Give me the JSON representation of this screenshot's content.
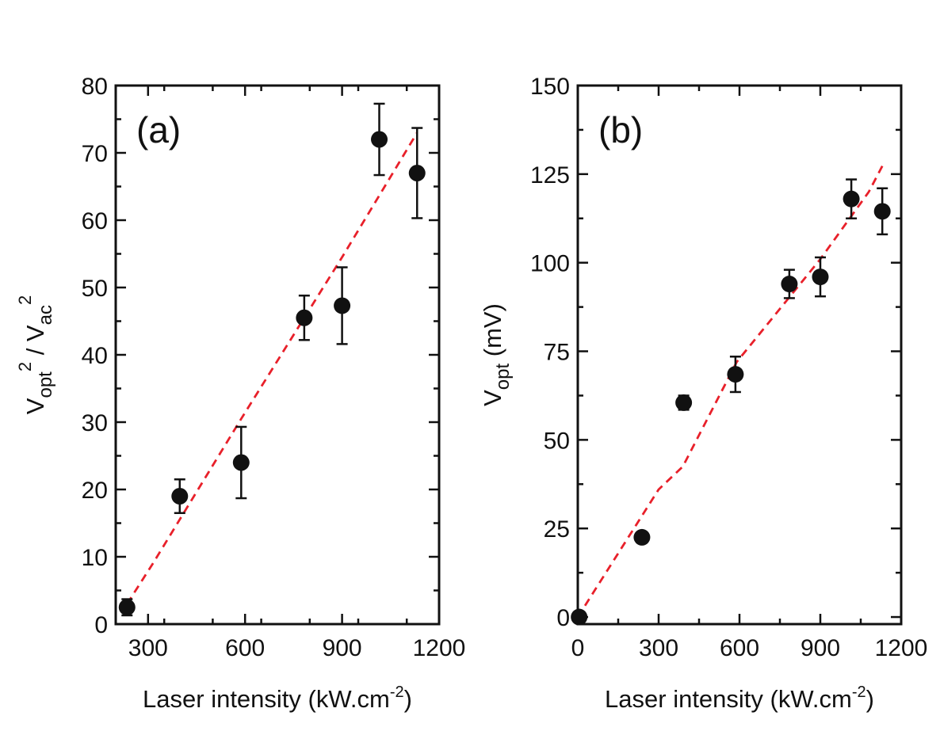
{
  "chart_data": [
    {
      "type": "scatter",
      "panel_label": "(a)",
      "xlabel": "Laser intensity (kW.cm",
      "xlabel_sup": "-2",
      "xlabel_close": ")",
      "ylabel": {
        "v1": "V",
        "sub1": "opt",
        "sup1": "2",
        "slash": " / V",
        "sub2": "ac",
        "sup2": "2"
      },
      "xlim": [
        200,
        1200
      ],
      "ylim": [
        0,
        80
      ],
      "xticks": [
        300,
        600,
        900,
        1200
      ],
      "yticks": [
        0,
        10,
        20,
        30,
        40,
        50,
        60,
        70,
        80
      ],
      "xtick_labels": [
        "300",
        "600",
        "900",
        "1200"
      ],
      "ytick_labels": [
        "0",
        "10",
        "20",
        "30",
        "40",
        "50",
        "60",
        "70",
        "80"
      ],
      "series": [
        {
          "name": "data",
          "points": [
            {
              "x": 235,
              "y": 2.5,
              "err": 1.2
            },
            {
              "x": 398,
              "y": 19.0,
              "err": 2.5
            },
            {
              "x": 588,
              "y": 24.0,
              "err": 5.3
            },
            {
              "x": 783,
              "y": 45.5,
              "err": 3.3
            },
            {
              "x": 900,
              "y": 47.3,
              "err": 5.7
            },
            {
              "x": 1015,
              "y": 72.0,
              "err": 5.3
            },
            {
              "x": 1132,
              "y": 67.0,
              "err": 6.7
            }
          ]
        },
        {
          "name": "linear fit",
          "line": "dashed",
          "color": "#e8202a",
          "points": [
            [
              235,
              3.0
            ],
            [
              315,
              9.0
            ],
            [
              588,
              30.5
            ],
            [
              900,
              54.5
            ],
            [
              1132,
              73.0
            ]
          ]
        }
      ]
    },
    {
      "type": "scatter",
      "panel_label": "(b)",
      "xlabel": "Laser intensity (kW.cm",
      "xlabel_sup": "-2",
      "xlabel_close": ")",
      "ylabel": {
        "v1": "V",
        "sub1": "opt",
        "rest": " (mV)"
      },
      "xlim": [
        0,
        1200
      ],
      "ylim": [
        -2,
        150
      ],
      "xticks": [
        0,
        300,
        600,
        900,
        1200
      ],
      "yticks": [
        0,
        25,
        50,
        75,
        100,
        125,
        150
      ],
      "xtick_labels": [
        "0",
        "300",
        "600",
        "900",
        "1200"
      ],
      "ytick_labels": [
        "0",
        "25",
        "50",
        "75",
        "100",
        "125",
        "150"
      ],
      "series": [
        {
          "name": "data",
          "points": [
            {
              "x": 5,
              "y": 0.0,
              "err": 0.0
            },
            {
              "x": 238,
              "y": 22.5,
              "err": 0.0
            },
            {
              "x": 393,
              "y": 60.5,
              "err": 2.0
            },
            {
              "x": 585,
              "y": 68.5,
              "err": 5.0
            },
            {
              "x": 785,
              "y": 94.0,
              "err": 4.0
            },
            {
              "x": 900,
              "y": 96.0,
              "err": 5.5
            },
            {
              "x": 1015,
              "y": 118.0,
              "err": 5.5
            },
            {
              "x": 1130,
              "y": 114.5,
              "err": 6.5
            }
          ]
        },
        {
          "name": "linear fit",
          "line": "dashed",
          "color": "#e8202a",
          "points": [
            [
              0,
              0.0
            ],
            [
              300,
              36.0
            ],
            [
              390,
              42.5
            ],
            [
              590,
              72.0
            ],
            [
              900,
              101.0
            ],
            [
              1080,
              120.0
            ],
            [
              1135,
              128.0
            ]
          ]
        }
      ]
    }
  ]
}
